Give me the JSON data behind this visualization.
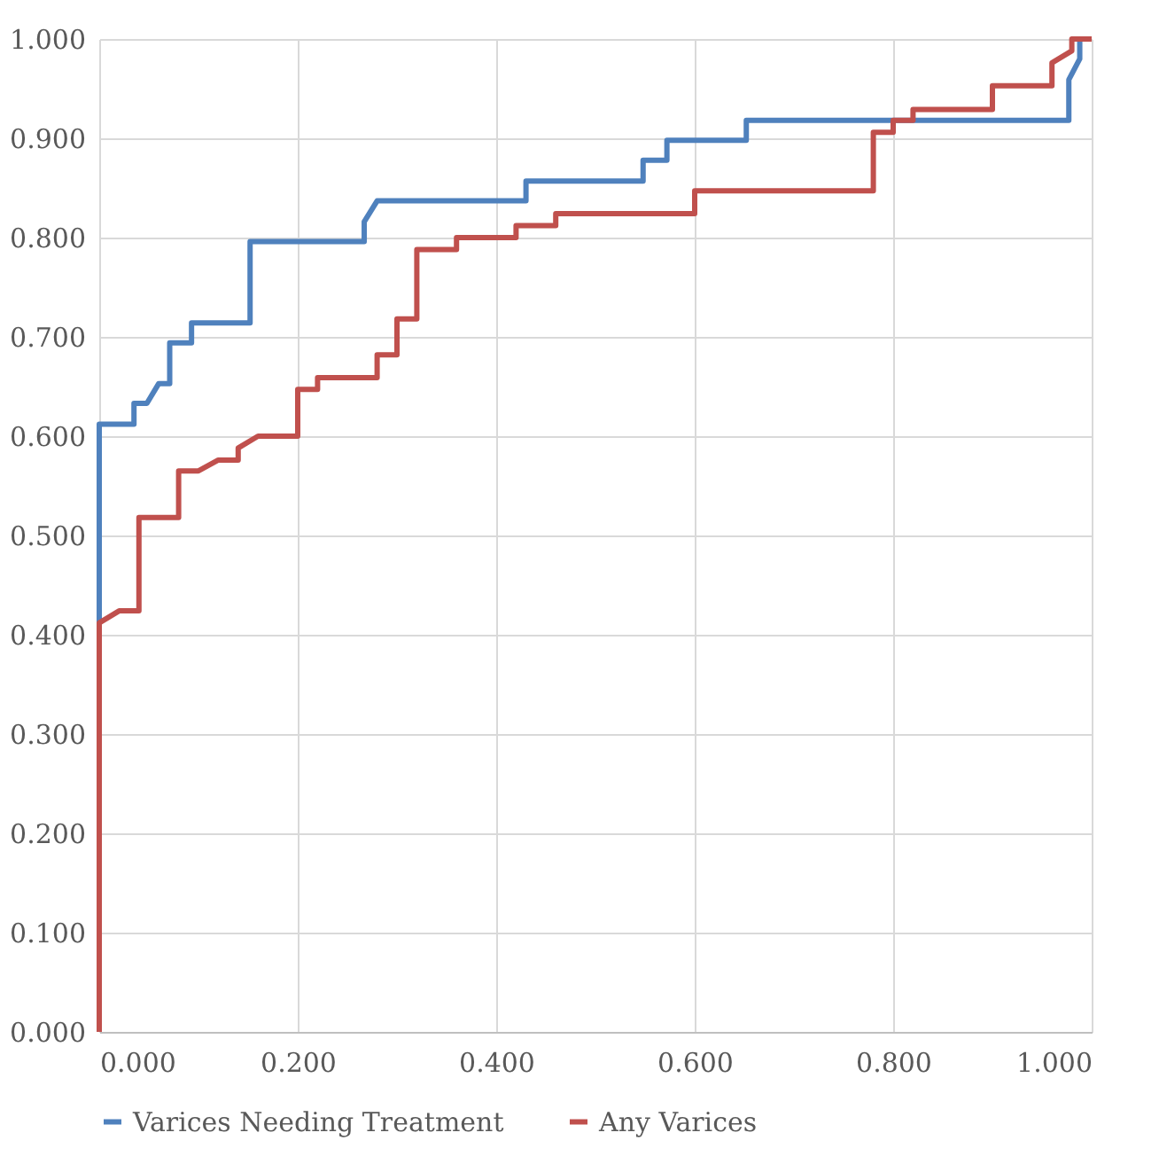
{
  "chart_data": {
    "type": "line",
    "xlim": [
      0,
      1
    ],
    "ylim": [
      0,
      1
    ],
    "xticks": [
      {
        "value": 0,
        "label": "0.000"
      },
      {
        "value": 0.2,
        "label": "0.200"
      },
      {
        "value": 0.4,
        "label": "0.400"
      },
      {
        "value": 0.6,
        "label": "0.600"
      },
      {
        "value": 0.8,
        "label": "0.800"
      },
      {
        "value": 1,
        "label": "1.000"
      }
    ],
    "yticks": [
      {
        "value": 0,
        "label": "0.000"
      },
      {
        "value": 0.1,
        "label": "0.100"
      },
      {
        "value": 0.2,
        "label": "0.200"
      },
      {
        "value": 0.3,
        "label": "0.300"
      },
      {
        "value": 0.4,
        "label": "0.400"
      },
      {
        "value": 0.5,
        "label": "0.500"
      },
      {
        "value": 0.6,
        "label": "0.600"
      },
      {
        "value": 0.7,
        "label": "0.700"
      },
      {
        "value": 0.8,
        "label": "0.800"
      },
      {
        "value": 0.9,
        "label": "0.900"
      },
      {
        "value": 1,
        "label": "1.000"
      }
    ],
    "grid": true,
    "legend": "bottom",
    "marker": "none",
    "line_style": "solid",
    "series": [
      {
        "name": "Varices Needing Treatment",
        "color": "#4f81bd",
        "x": [
          0,
          0,
          0.035,
          0.035,
          0.048,
          0.06,
          0.071,
          0.071,
          0.093,
          0.093,
          0.152,
          0.152,
          0.267,
          0.267,
          0.28,
          0.43,
          0.43,
          0.548,
          0.548,
          0.572,
          0.572,
          0.652,
          0.652,
          0.977,
          0.977,
          0.988,
          0.988
        ],
        "values": [
          0.41,
          0.612,
          0.612,
          0.633,
          0.633,
          0.653,
          0.653,
          0.694,
          0.694,
          0.714,
          0.714,
          0.796,
          0.796,
          0.816,
          0.837,
          0.837,
          0.857,
          0.857,
          0.878,
          0.878,
          0.898,
          0.898,
          0.918,
          0.918,
          0.959,
          0.98,
          1.0
        ]
      },
      {
        "name": "Any Varices",
        "color": "#c0504d",
        "x": [
          0,
          0,
          0.02,
          0.04,
          0.04,
          0.08,
          0.08,
          0.1,
          0.12,
          0.14,
          0.14,
          0.16,
          0.2,
          0.2,
          0.22,
          0.22,
          0.28,
          0.28,
          0.3,
          0.3,
          0.32,
          0.32,
          0.36,
          0.36,
          0.42,
          0.42,
          0.46,
          0.46,
          0.6,
          0.6,
          0.78,
          0.78,
          0.8,
          0.8,
          0.82,
          0.82,
          0.9,
          0.9,
          0.96,
          0.96,
          0.98,
          0.98,
          1.0
        ],
        "values": [
          0,
          0.412,
          0.424,
          0.424,
          0.518,
          0.518,
          0.565,
          0.565,
          0.576,
          0.576,
          0.588,
          0.6,
          0.6,
          0.647,
          0.647,
          0.659,
          0.659,
          0.682,
          0.682,
          0.718,
          0.718,
          0.788,
          0.788,
          0.8,
          0.8,
          0.812,
          0.812,
          0.824,
          0.824,
          0.847,
          0.847,
          0.906,
          0.906,
          0.918,
          0.918,
          0.929,
          0.929,
          0.953,
          0.953,
          0.976,
          0.988,
          1.0,
          1.0
        ]
      }
    ]
  }
}
